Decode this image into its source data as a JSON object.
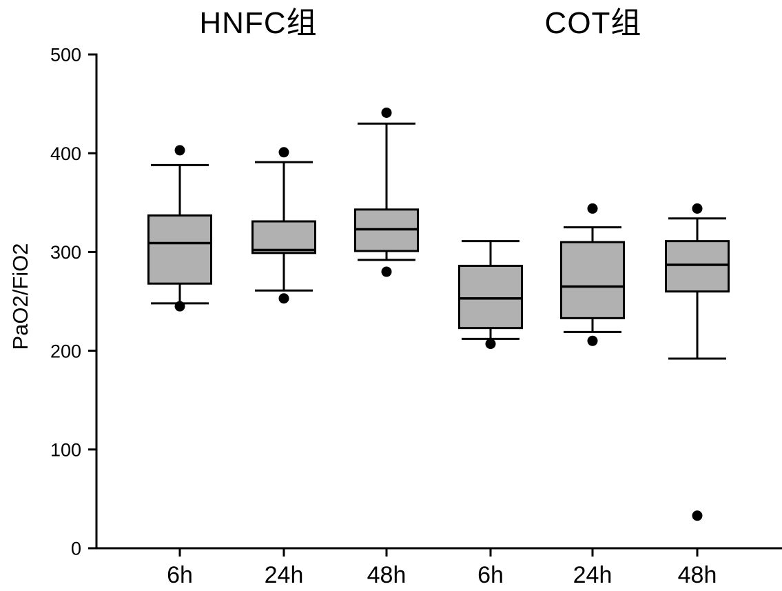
{
  "chart_data": {
    "type": "box",
    "title": "",
    "ylabel": "PaO2/FiO2",
    "xlabel": "",
    "ylim": [
      0,
      500
    ],
    "yticks": [
      0,
      100,
      200,
      300,
      400,
      500
    ],
    "grid": false,
    "legend_position": "none",
    "box_fill_color": "#b1b1b1",
    "line_color": "#000000",
    "background_color": "#ffffff",
    "groups": [
      {
        "name": "HNFC组",
        "boxes": [
          {
            "label": "6h",
            "whisker_low": 248,
            "q1": 268,
            "median": 309,
            "q3": 337,
            "whisker_high": 388,
            "outliers_low": [
              245
            ],
            "outliers_high": [
              403
            ]
          },
          {
            "label": "24h",
            "whisker_low": 261,
            "q1": 299,
            "median": 302,
            "q3": 331,
            "whisker_high": 391,
            "outliers_low": [
              253
            ],
            "outliers_high": [
              401
            ]
          },
          {
            "label": "48h",
            "whisker_low": 292,
            "q1": 301,
            "median": 323,
            "q3": 343,
            "whisker_high": 430,
            "outliers_low": [
              280
            ],
            "outliers_high": [
              441
            ]
          }
        ]
      },
      {
        "name": "COT组",
        "boxes": [
          {
            "label": "6h",
            "whisker_low": 212,
            "q1": 223,
            "median": 253,
            "q3": 286,
            "whisker_high": 311,
            "outliers_low": [
              207
            ],
            "outliers_high": []
          },
          {
            "label": "24h",
            "whisker_low": 219,
            "q1": 233,
            "median": 265,
            "q3": 310,
            "whisker_high": 325,
            "outliers_low": [
              210
            ],
            "outliers_high": [
              344
            ]
          },
          {
            "label": "48h",
            "whisker_low": 192,
            "q1": 260,
            "median": 287,
            "q3": 311,
            "whisker_high": 334,
            "outliers_low": [
              33
            ],
            "outliers_high": [
              344
            ]
          }
        ]
      }
    ]
  }
}
